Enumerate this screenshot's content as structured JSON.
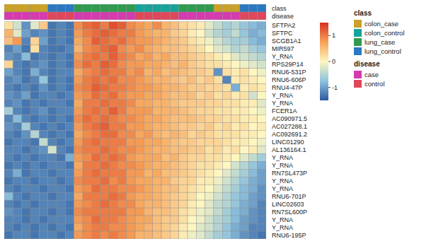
{
  "chart_data": {
    "type": "heatmap",
    "rows": [
      "SFTPA2",
      "SFTPC",
      "SCGB1A1",
      "MIR597",
      "Y_RNA",
      "RPS29P14",
      "RNU6-531P",
      "RNU6-606P",
      "RNU4-47P",
      "Y_RNA",
      "Y_RNA",
      "FCER1A",
      "AC090971.5",
      "AC027288.1",
      "AC092691.2",
      "LINC01290",
      "AL136164.1",
      "Y_RNA",
      "Y_RNA",
      "RN7SL473P",
      "Y_RNA",
      "Y_RNA",
      "RNU6-701P",
      "LINC02603",
      "RN7SL600P",
      "Y_RNA",
      "Y_RNA",
      "RNU6-195P"
    ],
    "cells": [
      [
        0.2,
        -0.3,
        -1.1,
        -0.2,
        0.4,
        -1.3,
        -1.2,
        -1.3,
        0.9,
        1.1,
        1.2,
        1.0,
        1.3,
        1.2,
        0.9,
        0.8,
        0.7,
        0.9,
        0.6,
        0.5,
        0.3,
        0.2,
        0.1,
        -0.2,
        -0.4,
        -0.6,
        -0.5,
        -0.7,
        -0.8,
        -0.9
      ],
      [
        0.6,
        -0.2,
        -1.0,
        -1.2,
        -1.1,
        -1.3,
        -1.2,
        -1.3,
        0.8,
        1.0,
        1.1,
        1.2,
        1.1,
        1.0,
        1.0,
        0.8,
        0.7,
        0.6,
        0.6,
        0.4,
        0.3,
        0.1,
        0.0,
        -0.3,
        -0.5,
        -0.6,
        -0.4,
        -0.7,
        -0.9,
        -0.8
      ],
      [
        0.5,
        0.8,
        -1.2,
        0.3,
        -1.0,
        -1.3,
        -1.2,
        -1.3,
        0.7,
        0.9,
        1.2,
        1.1,
        1.0,
        1.1,
        0.9,
        0.8,
        0.8,
        0.7,
        0.6,
        0.5,
        0.4,
        0.2,
        0.1,
        -0.1,
        -0.3,
        -0.5,
        -0.6,
        -0.6,
        -0.8,
        -0.9
      ],
      [
        -1.2,
        -1.0,
        -1.3,
        0.2,
        -1.2,
        -1.3,
        -1.3,
        -1.2,
        0.6,
        0.9,
        1.0,
        1.1,
        1.2,
        0.9,
        0.8,
        0.9,
        0.7,
        0.6,
        0.5,
        0.5,
        0.4,
        0.3,
        0.2,
        0.0,
        -0.2,
        -0.3,
        -0.5,
        -0.4,
        -0.6,
        -0.7
      ],
      [
        -1.1,
        -1.2,
        -0.8,
        -1.3,
        -1.2,
        -1.3,
        -1.2,
        -1.3,
        0.8,
        1.0,
        1.1,
        1.0,
        1.2,
        1.0,
        0.9,
        0.7,
        0.8,
        0.6,
        0.7,
        0.5,
        0.5,
        0.4,
        0.3,
        0.2,
        0.1,
        0.0,
        -0.2,
        -0.3,
        -0.4,
        -0.5
      ],
      [
        0.3,
        -1.2,
        -1.3,
        -1.2,
        -1.1,
        -1.3,
        -1.2,
        -1.3,
        0.9,
        1.1,
        1.0,
        1.2,
        1.1,
        0.9,
        0.8,
        0.8,
        0.7,
        0.7,
        0.6,
        0.5,
        0.6,
        0.4,
        0.3,
        0.2,
        0.2,
        0.1,
        0.0,
        -0.1,
        -0.2,
        -0.3
      ],
      [
        -1.0,
        -1.2,
        -1.3,
        -0.9,
        -1.2,
        -1.3,
        -1.2,
        -1.2,
        0.7,
        0.9,
        1.0,
        1.1,
        1.0,
        1.0,
        0.8,
        0.9,
        0.6,
        0.7,
        0.5,
        0.6,
        0.5,
        0.4,
        0.4,
        0.3,
        -1.1,
        0.2,
        0.1,
        0.2,
        0.0,
        -0.1
      ],
      [
        -1.2,
        -1.1,
        -1.3,
        -1.2,
        -0.7,
        -1.3,
        -1.2,
        -1.3,
        0.8,
        1.0,
        1.1,
        1.0,
        1.1,
        0.9,
        0.9,
        0.8,
        0.7,
        0.6,
        0.6,
        0.5,
        0.4,
        0.5,
        0.3,
        0.4,
        0.2,
        -1.2,
        0.1,
        0.2,
        0.1,
        0.0
      ],
      [
        -1.2,
        -1.3,
        -1.2,
        -1.3,
        -1.1,
        -1.3,
        -1.2,
        -1.3,
        0.9,
        1.0,
        1.2,
        1.1,
        1.0,
        1.0,
        0.9,
        0.8,
        0.8,
        0.7,
        0.6,
        0.6,
        0.5,
        0.4,
        0.4,
        0.3,
        0.3,
        0.2,
        -0.9,
        0.1,
        0.2,
        0.1
      ],
      [
        -1.1,
        -1.2,
        -1.0,
        -1.3,
        -1.2,
        -1.2,
        -1.3,
        -1.2,
        0.8,
        0.9,
        1.1,
        1.0,
        1.1,
        0.9,
        0.8,
        0.8,
        0.7,
        0.7,
        0.6,
        0.5,
        0.5,
        0.5,
        0.3,
        0.4,
        0.2,
        0.3,
        0.1,
        0.2,
        -0.3,
        0.0
      ],
      [
        -1.2,
        -1.1,
        -1.3,
        -1.2,
        -1.3,
        -1.2,
        -1.2,
        -1.3,
        0.7,
        1.0,
        1.0,
        1.1,
        1.0,
        1.0,
        0.9,
        0.7,
        0.7,
        0.6,
        0.6,
        0.5,
        0.4,
        0.4,
        0.4,
        0.3,
        0.3,
        0.2,
        0.2,
        0.1,
        0.1,
        -0.2
      ],
      [
        -0.6,
        -1.2,
        -1.3,
        -1.2,
        -1.1,
        -1.3,
        -1.2,
        -1.2,
        0.8,
        1.0,
        1.1,
        1.0,
        1.2,
        1.0,
        0.8,
        0.8,
        0.8,
        0.6,
        0.6,
        0.6,
        0.5,
        0.4,
        0.3,
        0.3,
        0.2,
        0.2,
        0.1,
        0.1,
        0.0,
        -0.1
      ],
      [
        -1.2,
        -0.8,
        -1.2,
        -1.3,
        -1.2,
        -1.3,
        -1.2,
        -1.3,
        0.9,
        1.1,
        1.0,
        1.1,
        1.0,
        0.9,
        0.9,
        0.8,
        0.7,
        0.7,
        0.6,
        0.5,
        0.5,
        0.5,
        0.4,
        0.3,
        0.3,
        0.2,
        0.2,
        0.1,
        0.1,
        0.0
      ],
      [
        -1.1,
        -1.2,
        -0.6,
        -1.2,
        -1.3,
        -1.2,
        -1.3,
        -1.2,
        0.8,
        1.0,
        1.1,
        1.2,
        1.0,
        1.0,
        0.8,
        0.8,
        0.7,
        0.6,
        0.6,
        0.5,
        0.4,
        0.4,
        0.3,
        0.4,
        0.2,
        0.3,
        0.1,
        0.2,
        0.0,
        0.1
      ],
      [
        -1.2,
        -1.3,
        -1.1,
        -0.5,
        -1.2,
        -1.3,
        -1.2,
        -1.3,
        0.7,
        0.9,
        1.0,
        1.1,
        1.1,
        0.9,
        0.9,
        0.7,
        0.8,
        0.6,
        0.5,
        0.6,
        0.5,
        0.3,
        0.4,
        0.3,
        0.2,
        0.2,
        0.2,
        0.1,
        0.1,
        0.0
      ],
      [
        -1.3,
        -1.2,
        -1.2,
        -1.3,
        -0.4,
        -1.2,
        -1.3,
        -1.2,
        0.8,
        1.0,
        1.1,
        1.0,
        1.0,
        1.0,
        0.8,
        0.8,
        0.7,
        0.7,
        0.6,
        0.5,
        0.4,
        0.4,
        0.3,
        0.3,
        0.3,
        0.2,
        0.1,
        0.1,
        0.0,
        -0.1
      ],
      [
        -1.2,
        -1.2,
        -1.3,
        -1.2,
        -1.1,
        -0.3,
        -1.2,
        -1.3,
        0.9,
        1.0,
        1.0,
        1.1,
        1.0,
        0.9,
        0.9,
        0.8,
        0.7,
        0.6,
        0.6,
        0.5,
        0.5,
        0.4,
        0.4,
        0.2,
        0.3,
        0.1,
        0.2,
        0.0,
        0.1,
        -0.2
      ],
      [
        -1.2,
        -1.3,
        -1.2,
        -1.3,
        -1.2,
        -1.2,
        -1.3,
        -0.9,
        0.8,
        0.9,
        1.1,
        1.0,
        1.1,
        1.0,
        0.8,
        0.7,
        0.7,
        0.7,
        0.5,
        0.6,
        0.4,
        0.3,
        0.3,
        0.2,
        0.2,
        0.1,
        0.0,
        -0.2,
        -0.4,
        -0.6
      ],
      [
        -1.3,
        -1.2,
        -1.3,
        -1.2,
        -1.3,
        -1.2,
        -1.2,
        -1.3,
        0.7,
        1.0,
        1.0,
        1.1,
        1.0,
        0.9,
        0.9,
        0.8,
        0.7,
        0.6,
        0.6,
        0.5,
        0.4,
        0.3,
        0.2,
        0.2,
        0.1,
        0.0,
        -0.3,
        -0.5,
        -0.7,
        -0.9
      ],
      [
        -1.2,
        -0.9,
        -1.3,
        -1.2,
        -1.2,
        -1.3,
        -1.2,
        -1.2,
        0.8,
        1.0,
        1.1,
        1.0,
        1.0,
        1.0,
        0.8,
        0.8,
        0.6,
        0.7,
        0.5,
        0.5,
        0.4,
        0.3,
        0.2,
        0.1,
        0.0,
        -0.2,
        -0.4,
        -0.6,
        -0.8,
        -1.0
      ],
      [
        -1.3,
        -1.2,
        -1.2,
        -1.3,
        -1.2,
        -1.2,
        -1.3,
        -1.2,
        0.9,
        1.0,
        1.0,
        1.1,
        0.9,
        1.0,
        0.8,
        0.7,
        0.7,
        0.6,
        0.6,
        0.4,
        0.3,
        0.3,
        0.1,
        0.1,
        -0.1,
        -0.3,
        -0.5,
        -0.7,
        -0.9,
        -1.0
      ],
      [
        -1.2,
        -1.3,
        -1.2,
        -1.2,
        -1.3,
        -1.2,
        -1.2,
        -1.3,
        0.8,
        0.9,
        1.1,
        1.0,
        1.0,
        0.9,
        0.9,
        0.8,
        0.7,
        0.6,
        0.5,
        0.5,
        0.3,
        0.2,
        0.1,
        0.0,
        -0.2,
        -0.4,
        -0.6,
        -0.8,
        -0.9,
        -1.1
      ],
      [
        -0.8,
        -1.2,
        -1.3,
        -1.2,
        -1.2,
        -1.3,
        -1.2,
        -1.2,
        0.7,
        1.0,
        1.0,
        1.0,
        1.1,
        1.0,
        0.8,
        0.7,
        0.7,
        0.6,
        0.5,
        0.4,
        0.3,
        0.2,
        0.0,
        -0.1,
        -0.3,
        -0.5,
        -0.7,
        -0.8,
        -1.0,
        -1.1
      ],
      [
        -1.2,
        -1.3,
        -1.2,
        -1.3,
        -1.2,
        -1.2,
        -1.2,
        -1.3,
        0.8,
        0.9,
        1.0,
        1.1,
        1.0,
        0.9,
        0.9,
        0.7,
        0.6,
        0.6,
        0.5,
        0.4,
        0.3,
        0.1,
        0.0,
        -0.2,
        -0.4,
        -0.5,
        -0.7,
        -0.9,
        -1.0,
        -1.2
      ],
      [
        -1.1,
        -1.2,
        -1.3,
        -1.2,
        -1.2,
        -1.3,
        -1.2,
        -1.3,
        0.9,
        1.0,
        1.0,
        1.0,
        1.0,
        1.0,
        0.8,
        0.8,
        0.6,
        0.5,
        0.5,
        0.4,
        0.2,
        0.1,
        -0.1,
        -0.2,
        -0.4,
        -0.6,
        -0.8,
        -0.9,
        -1.1,
        -1.2
      ],
      [
        -1.2,
        -1.2,
        -1.3,
        -1.2,
        -1.3,
        -1.2,
        -1.2,
        -1.2,
        0.8,
        0.9,
        1.1,
        1.0,
        1.0,
        0.9,
        0.8,
        0.7,
        0.7,
        0.5,
        0.4,
        0.4,
        0.2,
        0.0,
        -0.1,
        -0.3,
        -0.5,
        -0.6,
        -0.8,
        -1.0,
        -1.1,
        -1.2
      ],
      [
        -1.2,
        -1.3,
        -1.2,
        -1.3,
        -1.2,
        -1.3,
        -1.2,
        -1.3,
        0.7,
        0.9,
        1.0,
        1.0,
        0.9,
        0.9,
        0.8,
        0.7,
        0.6,
        0.5,
        0.4,
        0.3,
        0.1,
        0.0,
        -0.2,
        -0.3,
        -0.5,
        -0.7,
        -0.9,
        -1.0,
        -1.2,
        -1.2
      ],
      [
        -1.3,
        -1.2,
        -1.2,
        -1.3,
        -1.2,
        -1.2,
        -1.3,
        -1.2,
        0.8,
        0.9,
        1.0,
        0.9,
        1.0,
        0.9,
        0.8,
        0.6,
        0.6,
        0.5,
        0.4,
        0.3,
        0.1,
        -0.1,
        -0.2,
        -0.4,
        -0.6,
        -0.7,
        -0.9,
        -1.1,
        -1.2,
        -1.3
      ]
    ],
    "colorbar": {
      "range": [
        -1.5,
        1.5
      ],
      "ticks": [
        -1,
        0,
        1
      ]
    },
    "annotations": [
      {
        "name": "class",
        "levels": [
          {
            "name": "colon_case",
            "color": "#c9a227"
          },
          {
            "name": "colon_control",
            "color": "#17a39a"
          },
          {
            "name": "lung_case",
            "color": "#2e9b4e"
          },
          {
            "name": "lung_control",
            "color": "#2a78c2"
          }
        ],
        "values": [
          "colon_case",
          "colon_case",
          "colon_case",
          "colon_case",
          "colon_case",
          "lung_control",
          "lung_control",
          "lung_control",
          "lung_case",
          "lung_case",
          "lung_case",
          "lung_case",
          "lung_case",
          "lung_case",
          "lung_case",
          "colon_control",
          "colon_control",
          "colon_control",
          "colon_control",
          "colon_control",
          "lung_case",
          "lung_case",
          "lung_case",
          "lung_case",
          "colon_case",
          "colon_case",
          "colon_case",
          "lung_control",
          "lung_control",
          "lung_control"
        ]
      },
      {
        "name": "disease",
        "levels": [
          {
            "name": "case",
            "color": "#d63aaf"
          },
          {
            "name": "control",
            "color": "#e0475b"
          }
        ],
        "values": [
          "case",
          "case",
          "case",
          "case",
          "case",
          "control",
          "control",
          "control",
          "case",
          "case",
          "case",
          "case",
          "case",
          "case",
          "case",
          "control",
          "control",
          "control",
          "control",
          "control",
          "case",
          "case",
          "case",
          "case",
          "case",
          "case",
          "case",
          "control",
          "control",
          "control"
        ]
      }
    ]
  }
}
